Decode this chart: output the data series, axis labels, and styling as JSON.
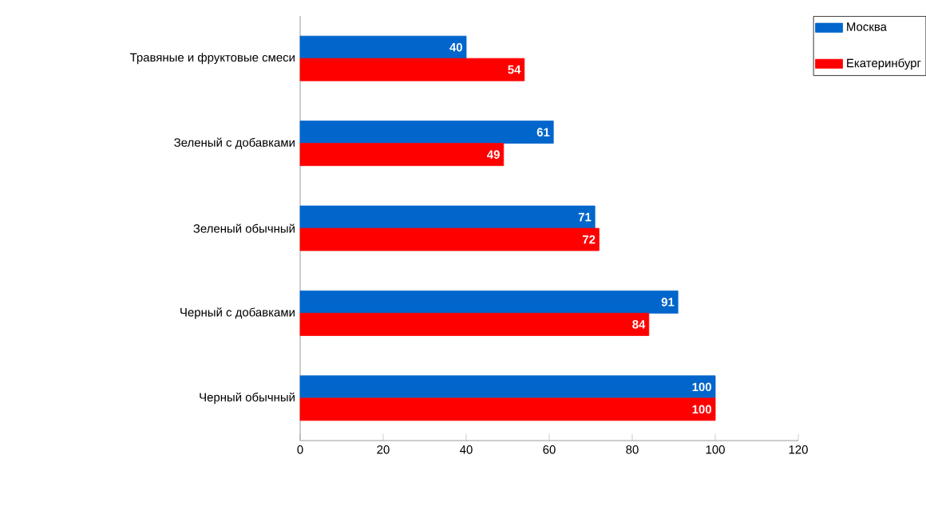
{
  "chart_data": {
    "type": "bar",
    "orientation": "horizontal",
    "categories": [
      "Травяные и фруктовые смеси",
      "Зеленый с добавками",
      "Зеленый обычный",
      "Черный с добавками",
      "Черный обычный"
    ],
    "series": [
      {
        "name": "Москва",
        "color": "#0066cc",
        "values": [
          40,
          61,
          71,
          91,
          100
        ]
      },
      {
        "name": "Екатеринбург",
        "color": "#ff0000",
        "values": [
          54,
          49,
          72,
          84,
          100
        ]
      }
    ],
    "xlim": [
      0,
      120
    ],
    "xticks": [
      0,
      20,
      40,
      60,
      80,
      100,
      120
    ],
    "data_labels": true,
    "grid": false,
    "legend": "top right"
  }
}
